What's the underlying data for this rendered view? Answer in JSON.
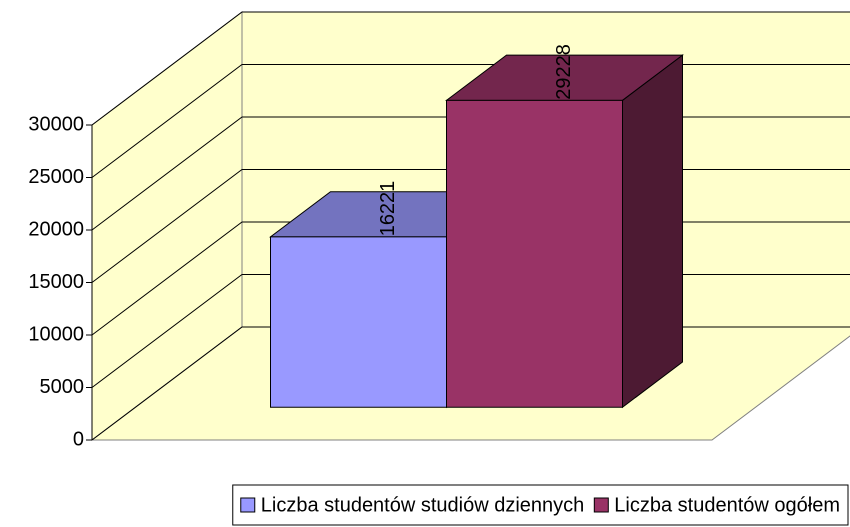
{
  "chart_data": {
    "type": "bar3d",
    "categories": [
      null
    ],
    "series": [
      {
        "name": "Liczba studentów studiów dziennych",
        "color": "#9999ff",
        "values": [
          16221
        ]
      },
      {
        "name": "Liczba studentów ogółem",
        "color": "#993366",
        "values": [
          29228
        ]
      }
    ],
    "ylim": [
      0,
      30000
    ],
    "yticks": [
      0,
      5000,
      10000,
      15000,
      20000,
      25000,
      30000
    ],
    "grid": true,
    "legend": "bottom"
  }
}
